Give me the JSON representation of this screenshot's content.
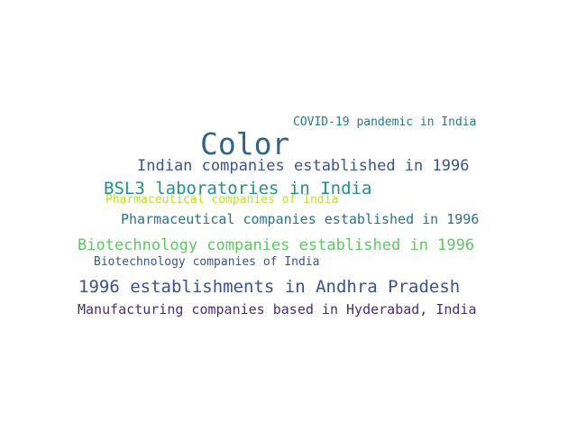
{
  "words": [
    {
      "id": "covid",
      "text": "COVID-19 pandemic in India",
      "color": "#2a788e"
    },
    {
      "id": "color",
      "text": "Color",
      "color": "#33638d"
    },
    {
      "id": "indian",
      "text": "Indian companies established in 1996",
      "color": "#3a548c"
    },
    {
      "id": "bsl3",
      "text": "BSL3 laboratories in India",
      "color": "#21918c"
    },
    {
      "id": "pharmin",
      "text": "Pharmaceutical companies of India",
      "color": "#bddf26"
    },
    {
      "id": "pharmco",
      "text": "Pharmaceutical companies established in 1996",
      "color": "#2d708e"
    },
    {
      "id": "biotech",
      "text": "Biotechnology companies established in 1996",
      "color": "#5ec962"
    },
    {
      "id": "bioind",
      "text": "Biotechnology companies of India",
      "color": "#39568c"
    },
    {
      "id": "y1996",
      "text": "1996 establishments in Andhra Pradesh",
      "color": "#3b528b"
    },
    {
      "id": "manuf",
      "text": "Manufacturing companies based in Hyderabad, India",
      "color": "#472d7b"
    }
  ]
}
